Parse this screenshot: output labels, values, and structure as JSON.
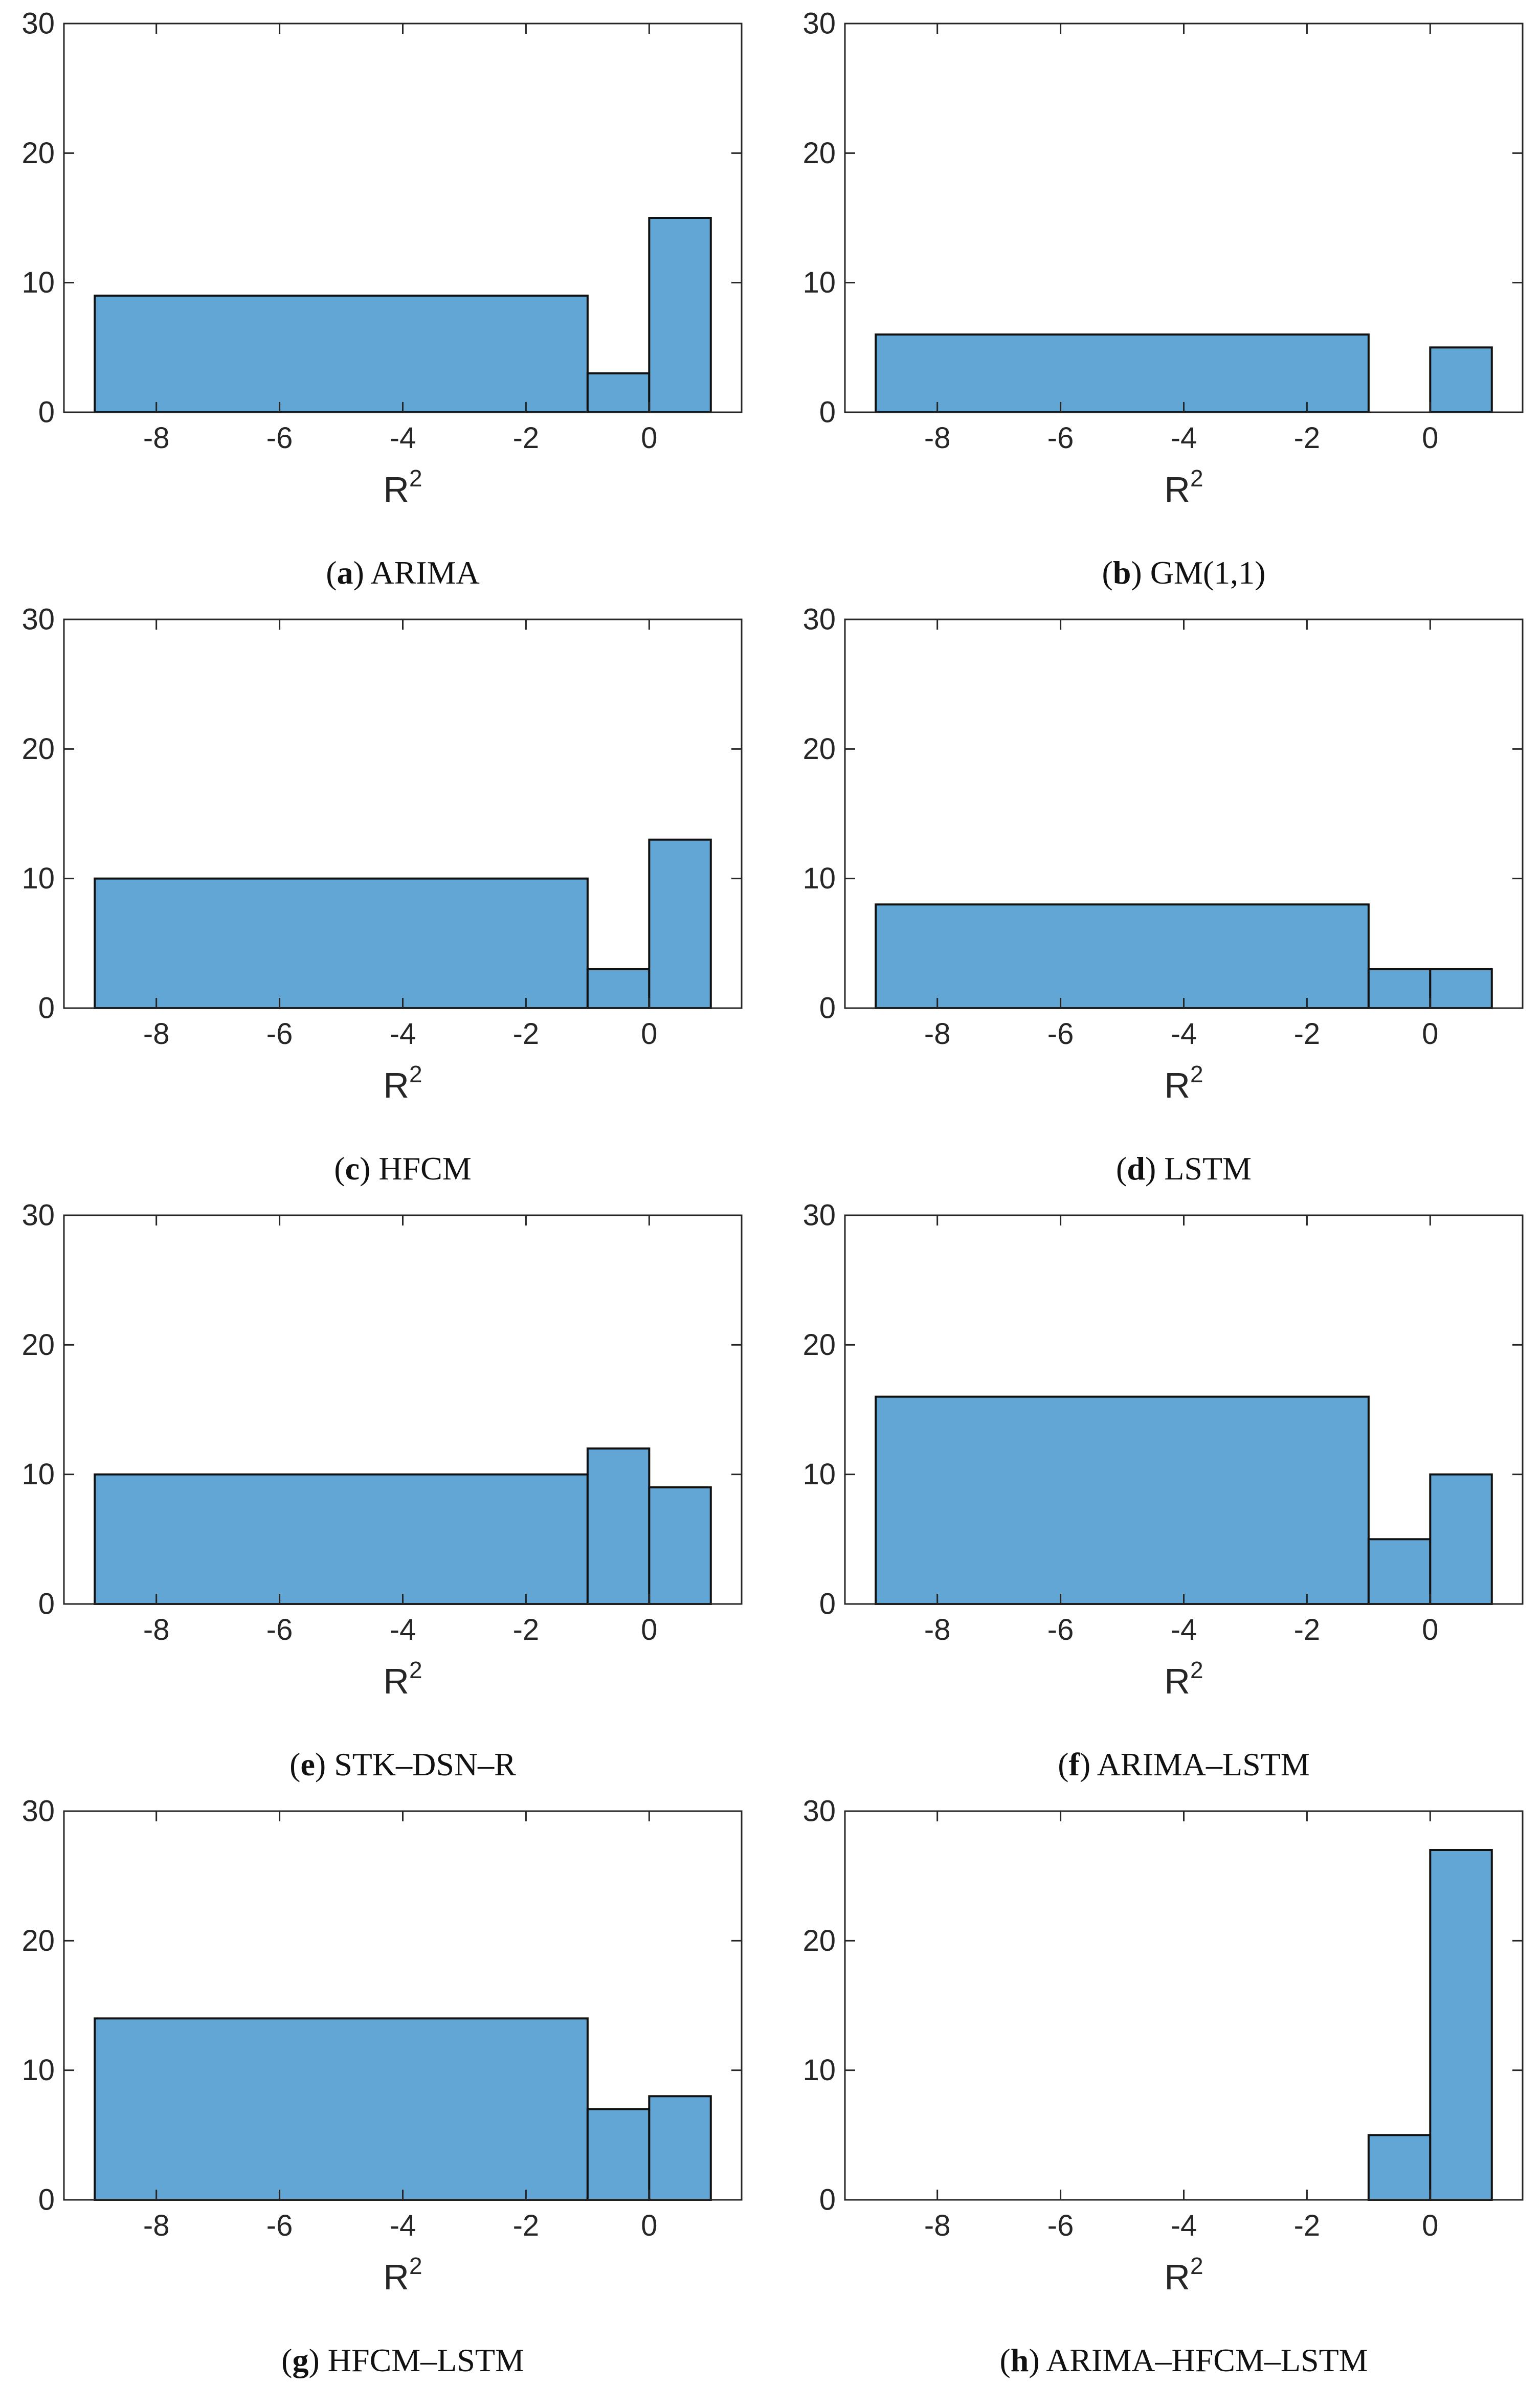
{
  "chart_data": [
    {
      "type": "bar",
      "panel": "a",
      "method": "ARIMA",
      "xlabel": "R",
      "xlabel_superscript": "2",
      "bins": [
        [
          -9,
          -1
        ],
        [
          -1,
          0
        ],
        [
          0,
          1
        ]
      ],
      "values": [
        9,
        3,
        15
      ],
      "xlim": [
        -9.5,
        1.5
      ],
      "ylim": [
        0,
        30
      ],
      "xticks": [
        -8,
        -6,
        -4,
        -2,
        0
      ],
      "xtick_labels": [
        "-8",
        "-6",
        "-4",
        "-2",
        "0"
      ],
      "yticks": [
        0,
        10,
        20,
        30
      ],
      "ytick_labels": [
        "0",
        "10",
        "20",
        "30"
      ]
    },
    {
      "type": "bar",
      "panel": "b",
      "method": "GM(1,1)",
      "xlabel": "R",
      "xlabel_superscript": "2",
      "bins": [
        [
          -9,
          -1
        ],
        [
          -1,
          0
        ],
        [
          0,
          1
        ]
      ],
      "values": [
        6,
        0,
        5
      ],
      "xlim": [
        -9.5,
        1.5
      ],
      "ylim": [
        0,
        30
      ],
      "xticks": [
        -8,
        -6,
        -4,
        -2,
        0
      ],
      "xtick_labels": [
        "-8",
        "-6",
        "-4",
        "-2",
        "0"
      ],
      "yticks": [
        0,
        10,
        20,
        30
      ],
      "ytick_labels": [
        "0",
        "10",
        "20",
        "30"
      ]
    },
    {
      "type": "bar",
      "panel": "c",
      "method": "HFCM",
      "xlabel": "R",
      "xlabel_superscript": "2",
      "bins": [
        [
          -9,
          -1
        ],
        [
          -1,
          0
        ],
        [
          0,
          1
        ]
      ],
      "values": [
        10,
        3,
        13
      ],
      "xlim": [
        -9.5,
        1.5
      ],
      "ylim": [
        0,
        30
      ],
      "xticks": [
        -8,
        -6,
        -4,
        -2,
        0
      ],
      "xtick_labels": [
        "-8",
        "-6",
        "-4",
        "-2",
        "0"
      ],
      "yticks": [
        0,
        10,
        20,
        30
      ],
      "ytick_labels": [
        "0",
        "10",
        "20",
        "30"
      ]
    },
    {
      "type": "bar",
      "panel": "d",
      "method": "LSTM",
      "xlabel": "R",
      "xlabel_superscript": "2",
      "bins": [
        [
          -9,
          -1
        ],
        [
          -1,
          0
        ],
        [
          0,
          1
        ]
      ],
      "values": [
        8,
        3,
        3
      ],
      "xlim": [
        -9.5,
        1.5
      ],
      "ylim": [
        0,
        30
      ],
      "xticks": [
        -8,
        -6,
        -4,
        -2,
        0
      ],
      "xtick_labels": [
        "-8",
        "-6",
        "-4",
        "-2",
        "0"
      ],
      "yticks": [
        0,
        10,
        20,
        30
      ],
      "ytick_labels": [
        "0",
        "10",
        "20",
        "30"
      ]
    },
    {
      "type": "bar",
      "panel": "e",
      "method": "STK–DSN–R",
      "xlabel": "R",
      "xlabel_superscript": "2",
      "bins": [
        [
          -9,
          -1
        ],
        [
          -1,
          0
        ],
        [
          0,
          1
        ]
      ],
      "values": [
        10,
        12,
        9
      ],
      "xlim": [
        -9.5,
        1.5
      ],
      "ylim": [
        0,
        30
      ],
      "xticks": [
        -8,
        -6,
        -4,
        -2,
        0
      ],
      "xtick_labels": [
        "-8",
        "-6",
        "-4",
        "-2",
        "0"
      ],
      "yticks": [
        0,
        10,
        20,
        30
      ],
      "ytick_labels": [
        "0",
        "10",
        "20",
        "30"
      ]
    },
    {
      "type": "bar",
      "panel": "f",
      "method": "ARIMA–LSTM",
      "xlabel": "R",
      "xlabel_superscript": "2",
      "bins": [
        [
          -9,
          -1
        ],
        [
          -1,
          0
        ],
        [
          0,
          1
        ]
      ],
      "values": [
        16,
        5,
        10
      ],
      "xlim": [
        -9.5,
        1.5
      ],
      "ylim": [
        0,
        30
      ],
      "xticks": [
        -8,
        -6,
        -4,
        -2,
        0
      ],
      "xtick_labels": [
        "-8",
        "-6",
        "-4",
        "-2",
        "0"
      ],
      "yticks": [
        0,
        10,
        20,
        30
      ],
      "ytick_labels": [
        "0",
        "10",
        "20",
        "30"
      ]
    },
    {
      "type": "bar",
      "panel": "g",
      "method": "HFCM–LSTM",
      "xlabel": "R",
      "xlabel_superscript": "2",
      "bins": [
        [
          -9,
          -1
        ],
        [
          -1,
          0
        ],
        [
          0,
          1
        ]
      ],
      "values": [
        14,
        7,
        8
      ],
      "xlim": [
        -9.5,
        1.5
      ],
      "ylim": [
        0,
        30
      ],
      "xticks": [
        -8,
        -6,
        -4,
        -2,
        0
      ],
      "xtick_labels": [
        "-8",
        "-6",
        "-4",
        "-2",
        "0"
      ],
      "yticks": [
        0,
        10,
        20,
        30
      ],
      "ytick_labels": [
        "0",
        "10",
        "20",
        "30"
      ]
    },
    {
      "type": "bar",
      "panel": "h",
      "method": "ARIMA–HFCM–LSTM",
      "xlabel": "R",
      "xlabel_superscript": "2",
      "bins": [
        [
          -9,
          -1
        ],
        [
          -1,
          0
        ],
        [
          0,
          1
        ]
      ],
      "values": [
        0,
        5,
        27
      ],
      "xlim": [
        -9.5,
        1.5
      ],
      "ylim": [
        0,
        30
      ],
      "xticks": [
        -8,
        -6,
        -4,
        -2,
        0
      ],
      "xtick_labels": [
        "-8",
        "-6",
        "-4",
        "-2",
        "0"
      ],
      "yticks": [
        0,
        10,
        20,
        30
      ],
      "ytick_labels": [
        "0",
        "10",
        "20",
        "30"
      ]
    }
  ],
  "colors": {
    "bar_fill": "#62a6d6",
    "bar_edge": "#111111",
    "axis": "#262626",
    "background": "#ffffff"
  }
}
